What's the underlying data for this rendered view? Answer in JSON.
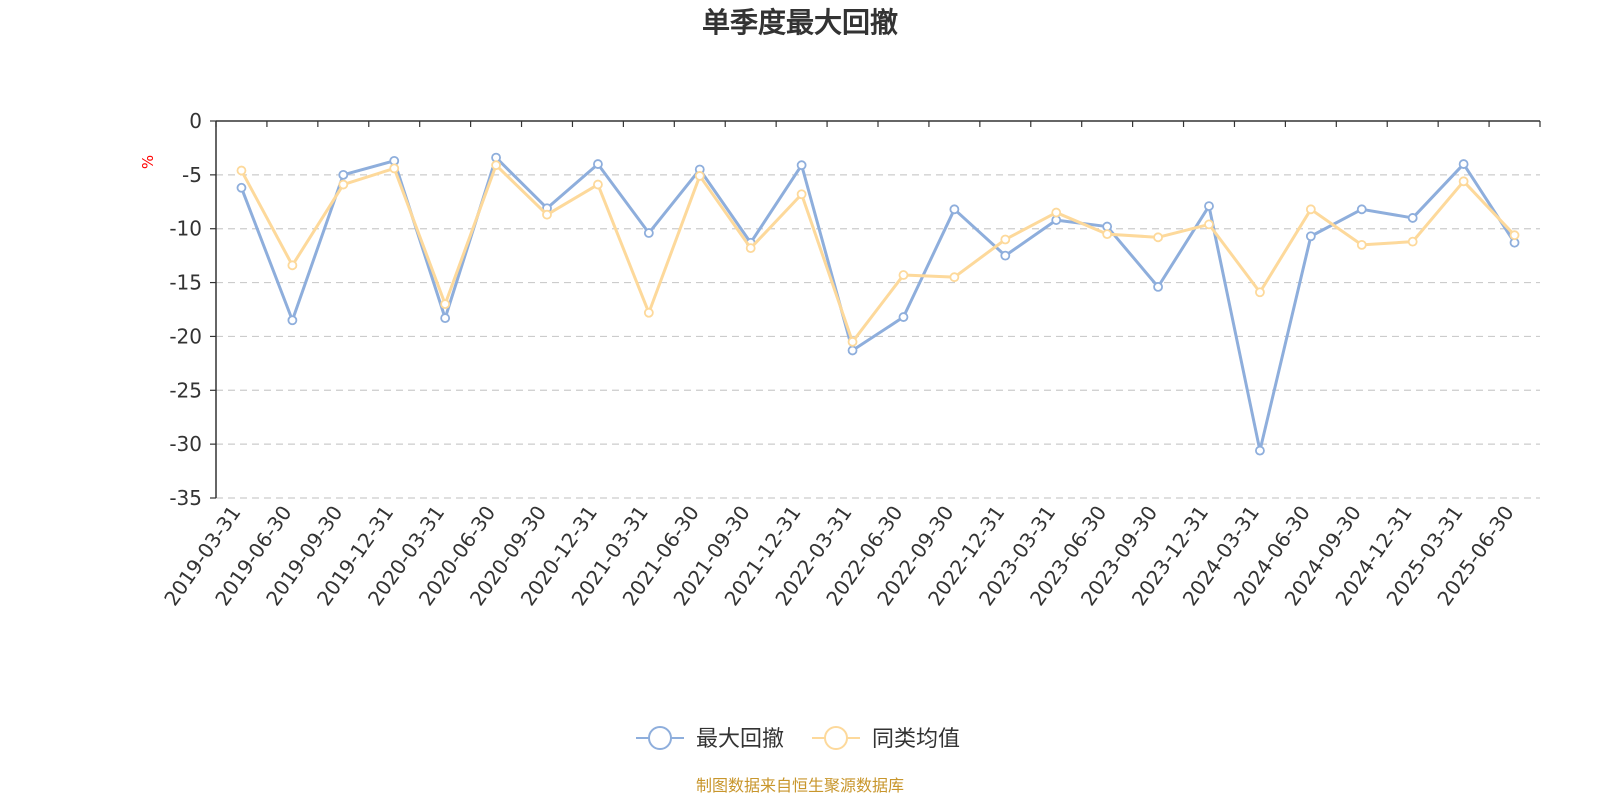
{
  "chart_data": {
    "type": "line",
    "title": "单季度最大回撤",
    "ylabel": "%",
    "ylim": [
      -35,
      0
    ],
    "yticks": [
      0,
      -5,
      -10,
      -15,
      -20,
      -25,
      -30,
      -35
    ],
    "grid": true,
    "legend_position": "bottom-center",
    "categories": [
      "2019-03-31",
      "2019-06-30",
      "2019-09-30",
      "2019-12-31",
      "2020-03-31",
      "2020-06-30",
      "2020-09-30",
      "2020-12-31",
      "2021-03-31",
      "2021-06-30",
      "2021-09-30",
      "2021-12-31",
      "2022-03-31",
      "2022-06-30",
      "2022-09-30",
      "2022-12-31",
      "2023-03-31",
      "2023-06-30",
      "2023-09-30",
      "2023-12-31",
      "2024-03-31",
      "2024-06-30",
      "2024-09-30",
      "2024-12-31",
      "2025-03-31",
      "2025-06-30"
    ],
    "series": [
      {
        "name": "最大回撤",
        "color": "#8eaedc",
        "values": [
          -6.2,
          -18.5,
          -5.0,
          -3.7,
          -18.3,
          -3.4,
          -8.1,
          -4.0,
          -10.4,
          -4.5,
          -11.3,
          -4.1,
          -21.3,
          -18.2,
          -8.2,
          -12.5,
          -9.2,
          -9.8,
          -15.4,
          -7.9,
          -30.6,
          -10.7,
          -8.2,
          -9.0,
          -4.0,
          -11.3
        ]
      },
      {
        "name": "同类均值",
        "color": "#fdd99b",
        "values": [
          -4.6,
          -13.4,
          -5.9,
          -4.4,
          -17.0,
          -4.1,
          -8.7,
          -5.9,
          -17.8,
          -5.1,
          -11.8,
          -6.8,
          -20.5,
          -14.3,
          -14.5,
          -11.0,
          -8.5,
          -10.5,
          -10.8,
          -9.6,
          -15.9,
          -8.2,
          -11.5,
          -11.2,
          -5.6,
          -10.6
        ]
      }
    ],
    "source": "制图数据来自恒生聚源数据库"
  }
}
